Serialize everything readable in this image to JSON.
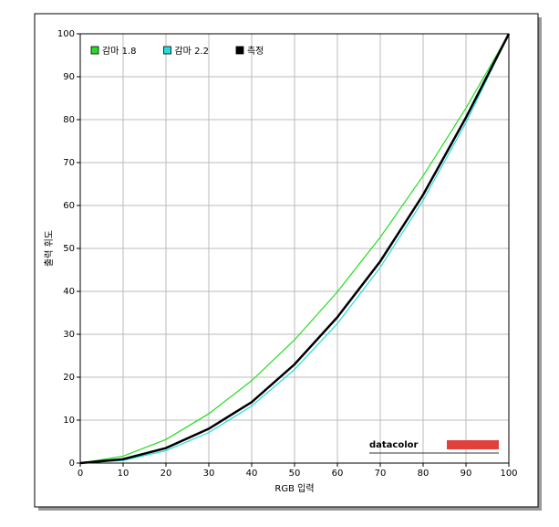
{
  "chart_data": {
    "type": "line",
    "x_label": "RGB 입력",
    "y_label": "출력 휘도",
    "x": [
      0,
      10,
      20,
      30,
      40,
      50,
      60,
      70,
      80,
      90,
      100
    ],
    "series": [
      {
        "name": "감마 1.8",
        "color": "#22dd22",
        "values": [
          0,
          1.6,
          5.5,
          11.5,
          19.2,
          28.7,
          39.9,
          52.6,
          66.9,
          82.7,
          100
        ]
      },
      {
        "name": "감마 2.2",
        "color": "#22dddd",
        "values": [
          0,
          0.6,
          2.9,
          7.1,
          13.3,
          21.8,
          32.5,
          45.6,
          61.2,
          79.3,
          100
        ]
      },
      {
        "name": "측정",
        "color": "#000000",
        "values": [
          0,
          0.9,
          3.5,
          8,
          14.2,
          23,
          34,
          47,
          62.5,
          80.5,
          100
        ]
      }
    ],
    "xlim": [
      0,
      100
    ],
    "ylim": [
      0,
      100
    ],
    "xticks": [
      0,
      10,
      20,
      30,
      40,
      50,
      60,
      70,
      80,
      90,
      100
    ],
    "yticks": [
      0,
      10,
      20,
      30,
      40,
      50,
      60,
      70,
      80,
      90,
      100
    ],
    "grid": true,
    "legend": "top-left",
    "logo": "datacolor"
  }
}
